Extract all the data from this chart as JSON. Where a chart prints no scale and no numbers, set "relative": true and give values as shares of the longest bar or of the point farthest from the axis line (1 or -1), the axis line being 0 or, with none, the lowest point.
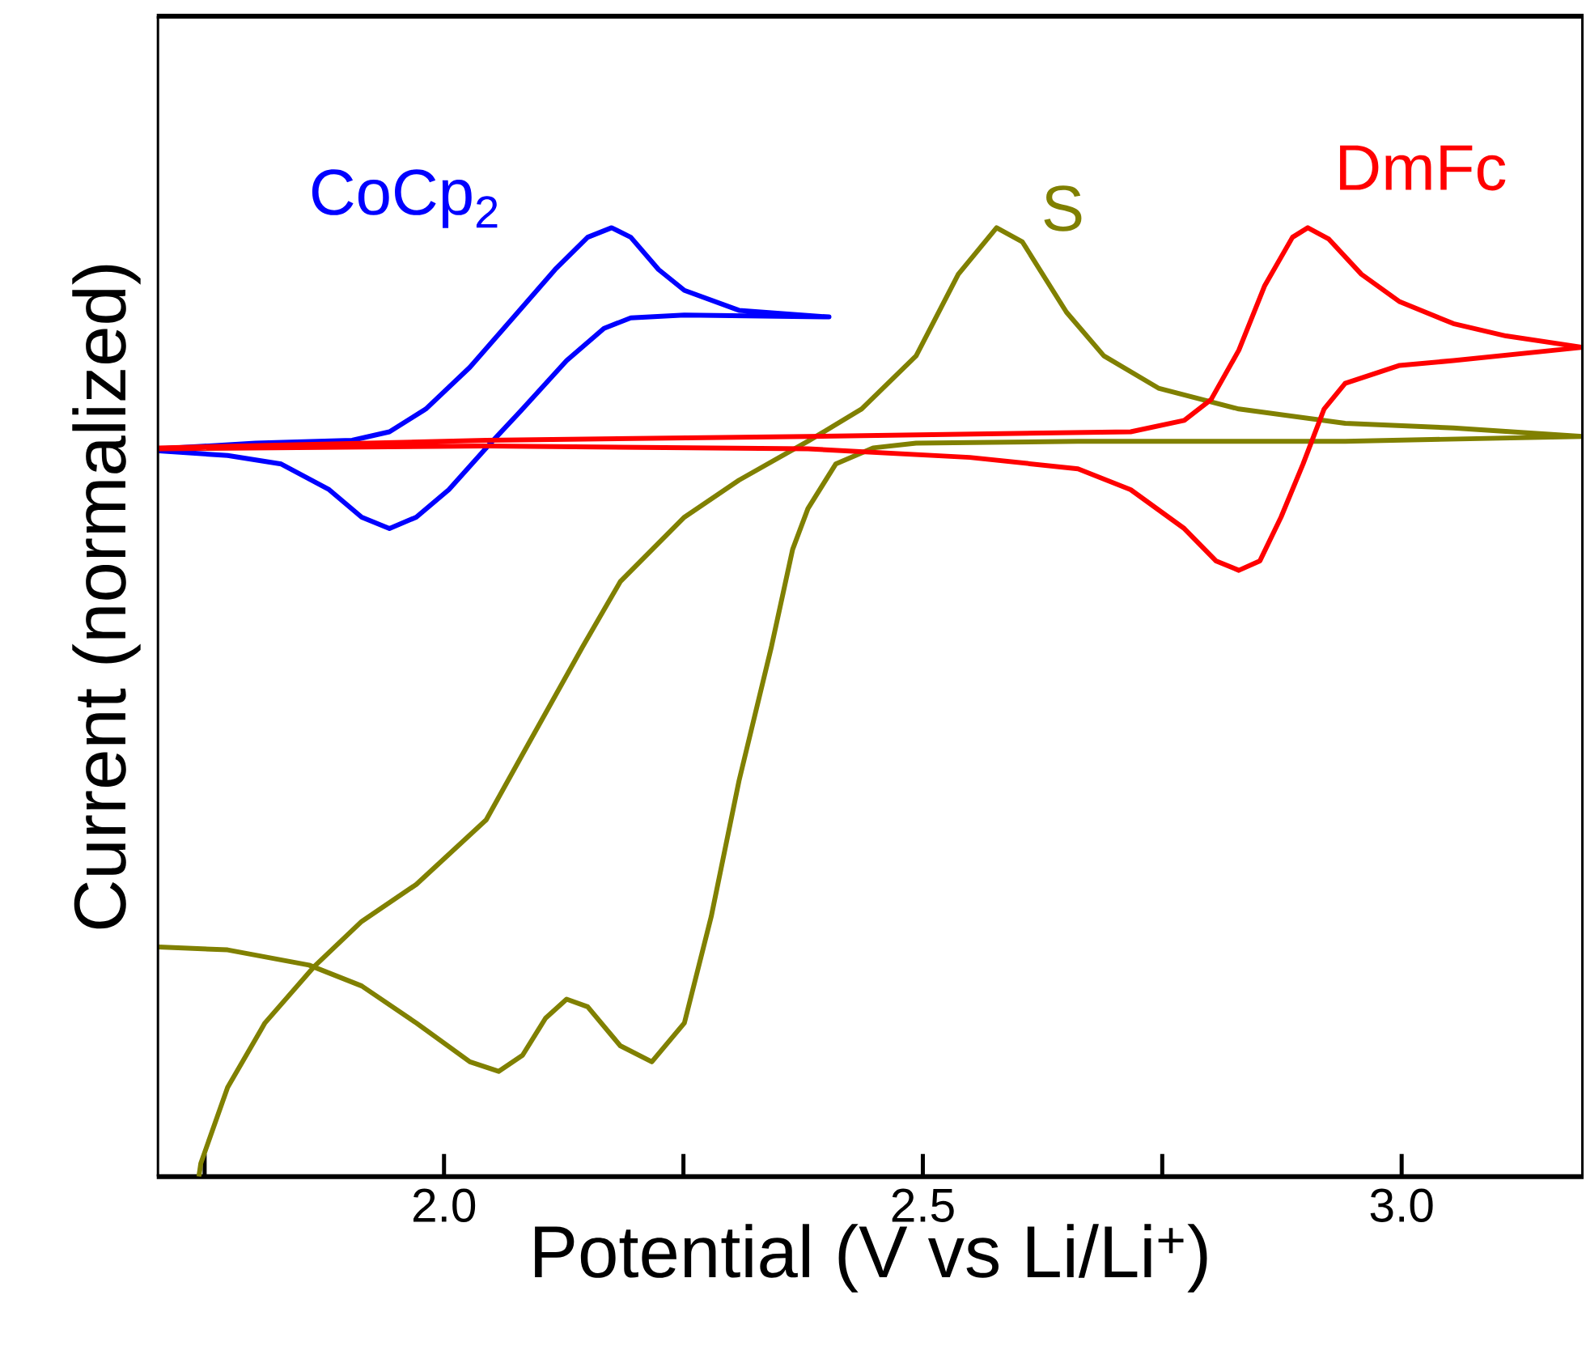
{
  "chart_data": {
    "type": "line",
    "relative": true,
    "xlabel": "Potential (V vs Li/Li$^{+}$)",
    "ylabel": "Current (normalized)",
    "xlim": [
      1.7,
      3.19
    ],
    "xticks": [
      {
        "value": 1.75,
        "label": null
      },
      {
        "value": 2.0,
        "label": "2.0"
      },
      {
        "value": 2.25,
        "label": null
      },
      {
        "value": 2.5,
        "label": "2.5"
      },
      {
        "value": 2.75,
        "label": null
      },
      {
        "value": 3.0,
        "label": "3.0"
      }
    ],
    "grid": false,
    "legend": false,
    "marker": "none",
    "line_style": "solid",
    "series": [
      {
        "name": "CoCp$_{2}$",
        "color": "#0000ff",
        "x": [
          1.702,
          1.803,
          1.904,
          1.943,
          1.981,
          2.027,
          2.072,
          2.116,
          2.15,
          2.175,
          2.195,
          2.224,
          2.251,
          2.308,
          2.402,
          2.251,
          2.195,
          2.167,
          2.128,
          2.082,
          2.044,
          2.005,
          1.971,
          1.943,
          1.914,
          1.88,
          1.83,
          1.774,
          1.702
        ],
        "values": [
          0.767,
          0.773,
          0.776,
          0.785,
          0.809,
          0.853,
          0.905,
          0.956,
          0.99,
          1,
          0.99,
          0.956,
          0.934,
          0.913,
          0.906,
          0.908,
          0.905,
          0.894,
          0.86,
          0.809,
          0.768,
          0.724,
          0.695,
          0.683,
          0.695,
          0.724,
          0.751,
          0.76,
          0.765
        ]
      },
      {
        "name": "S",
        "color": "#808000",
        "x": [
          1.702,
          1.774,
          1.859,
          1.914,
          1.971,
          2.027,
          2.057,
          2.082,
          2.106,
          2.128,
          2.15,
          2.184,
          2.217,
          2.251,
          2.279,
          2.308,
          2.342,
          2.364,
          2.38,
          2.409,
          2.448,
          2.493,
          2.662,
          2.941,
          3.189,
          3.054,
          2.941,
          2.83,
          2.746,
          2.689,
          2.65,
          2.604,
          2.577,
          2.537,
          2.493,
          2.436,
          2.38,
          2.308,
          2.251,
          2.184,
          2.145,
          2.082,
          2.044,
          1.971,
          1.914,
          1.864,
          1.813,
          1.774,
          1.746,
          1.744
        ],
        "values": [
          0.242,
          0.239,
          0.223,
          0.201,
          0.162,
          0.121,
          0.111,
          0.128,
          0.167,
          0.187,
          0.179,
          0.138,
          0.121,
          0.162,
          0.274,
          0.417,
          0.559,
          0.661,
          0.704,
          0.751,
          0.768,
          0.773,
          0.775,
          0.775,
          0.78,
          0.789,
          0.794,
          0.809,
          0.831,
          0.865,
          0.911,
          0.985,
          1,
          0.951,
          0.865,
          0.809,
          0.775,
          0.734,
          0.695,
          0.627,
          0.559,
          0.445,
          0.376,
          0.308,
          0.269,
          0.221,
          0.162,
          0.094,
          0.014,
          0
        ]
      },
      {
        "name": "DmFc",
        "color": "#ff0000",
        "x": [
          1.702,
          2.044,
          2.38,
          2.717,
          2.773,
          2.801,
          2.83,
          2.857,
          2.886,
          2.902,
          2.924,
          2.958,
          2.998,
          3.054,
          3.109,
          3.189,
          3.054,
          2.998,
          2.941,
          2.919,
          2.897,
          2.874,
          2.852,
          2.83,
          2.806,
          2.773,
          2.717,
          2.662,
          2.549,
          2.38,
          2.044,
          1.702
        ],
        "values": [
          0.768,
          0.776,
          0.78,
          0.785,
          0.797,
          0.819,
          0.871,
          0.939,
          0.99,
          1,
          0.988,
          0.951,
          0.922,
          0.899,
          0.886,
          0.874,
          0.86,
          0.855,
          0.836,
          0.809,
          0.751,
          0.695,
          0.649,
          0.639,
          0.649,
          0.683,
          0.724,
          0.746,
          0.758,
          0.767,
          0.77,
          0.767
        ]
      }
    ]
  }
}
